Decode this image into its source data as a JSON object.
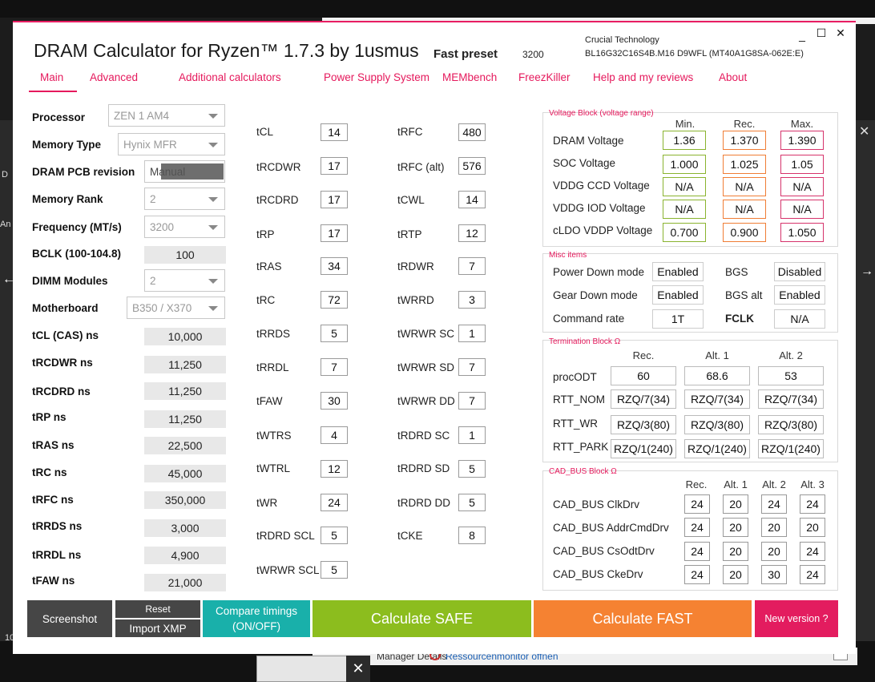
{
  "background": {
    "taskstrip_text": "Manager Details",
    "taskstrip_link": "Ressourcenmonitor öffnen",
    "left_partial_1": "D",
    "left_partial_2": "An",
    "left_partial_3": "10"
  },
  "app": {
    "title": "DRAM Calculator for Ryzen™ 1.7.3 by 1usmus",
    "fast_preset_label": "Fast preset",
    "fast_preset_value": "3200",
    "manufacturer": "Crucial Technology",
    "module": "BL16G32C16S4B.M16 D9WFL (MT40A1G8SA-062E:E)"
  },
  "tabs": [
    "Main",
    "Advanced",
    "Additional calculators",
    "Power Supply System",
    "MEMbench",
    "FreezKiller",
    "Help and my reviews",
    "About"
  ],
  "settings": {
    "processor_label": "Processor",
    "processor_value": "ZEN 1 AM4",
    "memtype_label": "Memory Type",
    "memtype_value": "Hynix MFR",
    "pcb_label": "DRAM PCB revision",
    "pcb_value": "Manual",
    "rank_label": "Memory Rank",
    "rank_value": "2",
    "freq_label": "Frequency (MT/s)",
    "freq_value": "3200",
    "bclk_label": "BCLK (100-104.8)",
    "bclk_value": "100",
    "dimm_label": "DIMM Modules",
    "dimm_value": "2",
    "mobo_label": "Motherboard",
    "mobo_value": "B350 / X370"
  },
  "ns_values": [
    {
      "label": "tCL (CAS) ns",
      "value": "10,000"
    },
    {
      "label": "tRCDWR ns",
      "value": "11,250"
    },
    {
      "label": "tRCDRD ns",
      "value": "11,250"
    },
    {
      "label": "tRP ns",
      "value": "11,250"
    },
    {
      "label": "tRAS ns",
      "value": "22,500"
    },
    {
      "label": "tRC ns",
      "value": "45,000"
    },
    {
      "label": "tRFC ns",
      "value": "350,000"
    },
    {
      "label": "tRRDS ns",
      "value": "3,000"
    },
    {
      "label": "tRRDL ns",
      "value": "4,900"
    },
    {
      "label": "tFAW ns",
      "value": "21,000"
    }
  ],
  "timings_col1": [
    {
      "label": "tCL",
      "value": "14"
    },
    {
      "label": "tRCDWR",
      "value": "17"
    },
    {
      "label": "tRCDRD",
      "value": "17"
    },
    {
      "label": "tRP",
      "value": "17"
    },
    {
      "label": "tRAS",
      "value": "34"
    },
    {
      "label": "tRC",
      "value": "72"
    },
    {
      "label": "tRRDS",
      "value": "5"
    },
    {
      "label": "tRRDL",
      "value": "7"
    },
    {
      "label": "tFAW",
      "value": "30"
    },
    {
      "label": "tWTRS",
      "value": "4"
    },
    {
      "label": "tWTRL",
      "value": "12"
    },
    {
      "label": "tWR",
      "value": "24"
    },
    {
      "label": "tRDRD SCL",
      "value": "5"
    },
    {
      "label": "tWRWR SCL",
      "value": "5"
    }
  ],
  "timings_col2": [
    {
      "label": "tRFC",
      "value": "480"
    },
    {
      "label": "tRFC (alt)",
      "value": "576"
    },
    {
      "label": "tCWL",
      "value": "14"
    },
    {
      "label": "tRTP",
      "value": "12"
    },
    {
      "label": "tRDWR",
      "value": "7"
    },
    {
      "label": "tWRRD",
      "value": "3"
    },
    {
      "label": "tWRWR SC",
      "value": "1"
    },
    {
      "label": "tWRWR SD",
      "value": "7"
    },
    {
      "label": "tWRWR DD",
      "value": "7"
    },
    {
      "label": "tRDRD SC",
      "value": "1"
    },
    {
      "label": "tRDRD SD",
      "value": "5"
    },
    {
      "label": "tRDRD DD",
      "value": "5"
    },
    {
      "label": "tCKE",
      "value": "8"
    }
  ],
  "voltage": {
    "title": "Voltage Block (voltage range)",
    "headers": [
      "Min.",
      "Rec.",
      "Max."
    ],
    "rows": [
      {
        "label": "DRAM Voltage",
        "min": "1.36",
        "rec": "1.370",
        "max": "1.390"
      },
      {
        "label": "SOC Voltage",
        "min": "1.000",
        "rec": "1.025",
        "max": "1.05"
      },
      {
        "label": "VDDG  CCD Voltage",
        "min": "N/A",
        "rec": "N/A",
        "max": "N/A"
      },
      {
        "label": "VDDG  IOD Voltage",
        "min": "N/A",
        "rec": "N/A",
        "max": "N/A"
      },
      {
        "label": "cLDO VDDP Voltage",
        "min": "0.700",
        "rec": "0.900",
        "max": "1.050"
      }
    ]
  },
  "misc": {
    "title": "Misc items",
    "power_down_label": "Power Down mode",
    "power_down_value": "Enabled",
    "bgs_label": "BGS",
    "bgs_value": "Disabled",
    "gear_down_label": "Gear Down mode",
    "gear_down_value": "Enabled",
    "bgs_alt_label": "BGS alt",
    "bgs_alt_value": "Enabled",
    "cmd_rate_label": "Command rate",
    "cmd_rate_value": "1T",
    "fclk_label": "FCLK",
    "fclk_value": "N/A"
  },
  "termination": {
    "title": "Termination Block Ω",
    "headers": [
      "Rec.",
      "Alt. 1",
      "Alt. 2"
    ],
    "rows": [
      {
        "label": "procODT",
        "values": [
          "60",
          "68.6",
          "53"
        ]
      },
      {
        "label": "RTT_NOM",
        "values": [
          "RZQ/7(34)",
          "RZQ/7(34)",
          "RZQ/7(34)"
        ]
      },
      {
        "label": "RTT_WR",
        "values": [
          "RZQ/3(80)",
          "RZQ/3(80)",
          "RZQ/3(80)"
        ]
      },
      {
        "label": "RTT_PARK",
        "values": [
          "RZQ/1(240)",
          "RZQ/1(240)",
          "RZQ/1(240)"
        ]
      }
    ]
  },
  "cadbus": {
    "title": "CAD_BUS Block Ω",
    "headers": [
      "Rec.",
      "Alt. 1",
      "Alt. 2",
      "Alt. 3"
    ],
    "rows": [
      {
        "label": "CAD_BUS ClkDrv",
        "values": [
          "24",
          "20",
          "24",
          "24"
        ]
      },
      {
        "label": "CAD_BUS AddrCmdDrv",
        "values": [
          "24",
          "20",
          "20",
          "20"
        ]
      },
      {
        "label": "CAD_BUS CsOdtDrv",
        "values": [
          "24",
          "20",
          "20",
          "24"
        ]
      },
      {
        "label": "CAD_BUS CkeDrv",
        "values": [
          "24",
          "20",
          "30",
          "24"
        ]
      }
    ]
  },
  "buttons": {
    "screenshot": "Screenshot",
    "reset": "Reset",
    "import_xmp": "Import XMP",
    "compare_1": "Compare timings",
    "compare_2": "(ON/OFF)",
    "calc_safe": "Calculate SAFE",
    "calc_fast": "Calculate FAST",
    "new_version": "New version ?"
  },
  "colors": {
    "accent": "#e5195c",
    "safe": "#8cbd1e",
    "fast": "#f58232",
    "compare": "#19b0aa",
    "dark_button": "#464646",
    "new_version": "#e31c5f"
  }
}
